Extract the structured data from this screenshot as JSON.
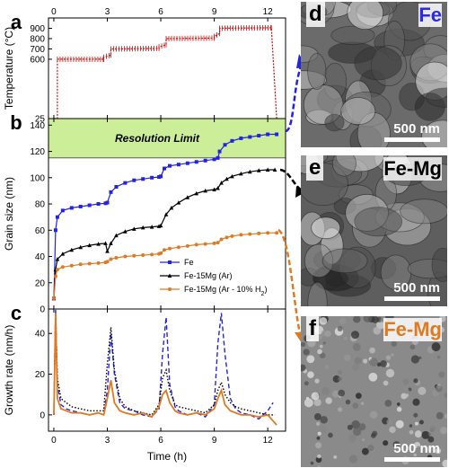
{
  "time_axis": {
    "label": "Time (h)",
    "ticks": [
      0,
      3,
      6,
      9,
      12
    ],
    "range": [
      -0.3,
      13
    ]
  },
  "panels": {
    "a": "a",
    "b": "b",
    "c": "c",
    "d": "d",
    "e": "e",
    "f": "f"
  },
  "resolution_limit_label": "Resolution Limit",
  "micrographs": [
    {
      "panel": "d",
      "material": "Fe",
      "material_color": "#2a2ae8",
      "scale_bar": "500 nm",
      "tone": "#6b6b6b"
    },
    {
      "panel": "e",
      "material": "Fe-Mg",
      "material_color": "#000000",
      "scale_bar": "500 nm",
      "tone": "#5e5e5e"
    },
    {
      "panel": "f",
      "material": "Fe-Mg",
      "material_color": "#e07a22",
      "scale_bar": "500 nm",
      "tone": "#8a8a8a"
    }
  ],
  "colors": {
    "fe": "#2323e6",
    "femg_ar": "#000000",
    "femg_h2": "#e07a22",
    "temp": "#cc1111",
    "band": "#ccee99"
  },
  "chart_data": [
    {
      "panel": "a",
      "type": "line",
      "ylabel": "Temperature (°C)",
      "yticks": [
        25,
        600,
        700,
        800,
        900
      ],
      "ylim": [
        25,
        1000
      ],
      "series": [
        {
          "name": "",
          "x": [
            0.0,
            0.2,
            0.2,
            2.8,
            2.8,
            3.2,
            3.2,
            5.9,
            5.9,
            6.3,
            6.3,
            9.0,
            9.0,
            9.3,
            9.3,
            12.2,
            12.2,
            12.5
          ],
          "y": [
            25,
            25,
            600,
            600,
            620,
            640,
            700,
            705,
            720,
            740,
            800,
            805,
            820,
            850,
            900,
            905,
            920,
            25
          ]
        }
      ]
    },
    {
      "panel": "b",
      "type": "line",
      "ylabel": "Grain size (nm)",
      "yticks": [
        0,
        20,
        40,
        60,
        80,
        100,
        120,
        140
      ],
      "ylim": [
        0,
        145
      ],
      "resolution_band": [
        115,
        145
      ],
      "legend": "center-right",
      "series": [
        {
          "name": "Fe",
          "x": [
            0.0,
            0.1,
            0.2,
            0.5,
            1.0,
            1.5,
            2.0,
            2.5,
            2.9,
            3.0,
            3.2,
            3.5,
            4.0,
            4.5,
            5.0,
            5.5,
            5.9,
            6.0,
            6.2,
            6.5,
            7.0,
            7.5,
            8.0,
            8.5,
            9.0,
            9.2,
            9.3,
            9.6,
            10.0,
            10.5,
            11.0,
            11.5,
            12.0,
            12.5
          ],
          "y": [
            8,
            60,
            70,
            75,
            77,
            78,
            79,
            80,
            80.5,
            81,
            89,
            93,
            96,
            98,
            99,
            100,
            100.5,
            101,
            107,
            109,
            110,
            111,
            112,
            113,
            114,
            115,
            120,
            125,
            128,
            130,
            131,
            132,
            133,
            133
          ]
        },
        {
          "name": "Fe-15Mg (Ar)",
          "x": [
            0.0,
            0.1,
            0.2,
            0.5,
            1.0,
            1.5,
            2.0,
            2.5,
            2.9,
            3.0,
            3.2,
            3.5,
            4.0,
            4.5,
            5.0,
            5.5,
            5.9,
            6.0,
            6.3,
            6.6,
            7.0,
            7.5,
            8.0,
            8.5,
            9.0,
            9.2,
            9.4,
            9.7,
            10.0,
            10.5,
            11.0,
            11.5,
            12.0,
            12.4
          ],
          "y": [
            8,
            30,
            38,
            42,
            45,
            47,
            48.5,
            49.5,
            50,
            44,
            50,
            56,
            59,
            61,
            62,
            62.5,
            63,
            63.5,
            72,
            77,
            81,
            85,
            88,
            90,
            91,
            92,
            96,
            99,
            101,
            103,
            104.5,
            105.5,
            106,
            106
          ]
        },
        {
          "name": "Fe-15Mg (Ar - 10% H2)",
          "x": [
            0.0,
            0.1,
            0.2,
            0.5,
            1.0,
            1.5,
            2.0,
            2.5,
            2.9,
            3.0,
            3.2,
            3.5,
            4.0,
            4.5,
            5.0,
            5.5,
            5.9,
            6.0,
            6.2,
            6.5,
            7.0,
            7.5,
            8.0,
            8.5,
            9.0,
            9.2,
            9.4,
            9.7,
            10.0,
            10.5,
            11.0,
            11.5,
            12.0,
            12.5
          ],
          "y": [
            8,
            25,
            30,
            32,
            33,
            34,
            34.5,
            35,
            35.5,
            36,
            38,
            39,
            40,
            40.5,
            41,
            41.5,
            42,
            42.5,
            45,
            46,
            47,
            48,
            49,
            49.5,
            50,
            50.5,
            53,
            54.5,
            55.5,
            56.5,
            57,
            57.5,
            58,
            58
          ]
        }
      ]
    },
    {
      "panel": "c",
      "type": "line",
      "ylabel": "Growth rate (nm/h)",
      "yticks": [
        0,
        20,
        40
      ],
      "ylim": [
        -8,
        52
      ],
      "series": [
        {
          "name": "Fe",
          "x": [
            0.0,
            0.1,
            0.2,
            0.4,
            0.7,
            1.0,
            1.5,
            2.0,
            2.5,
            2.8,
            3.0,
            3.2,
            3.4,
            3.7,
            4.0,
            4.5,
            5.0,
            5.5,
            5.9,
            6.1,
            6.3,
            6.5,
            6.8,
            7.0,
            7.5,
            8.0,
            8.5,
            9.0,
            9.2,
            9.4,
            9.6,
            9.9,
            10.2,
            10.5,
            11.0,
            11.5,
            12.0,
            12.3
          ],
          "y": [
            0,
            52,
            15,
            5,
            3,
            2,
            1,
            0,
            1,
            0,
            12,
            40,
            20,
            6,
            3,
            2,
            0,
            -1,
            3,
            30,
            48,
            15,
            4,
            2,
            0,
            1,
            -1,
            5,
            35,
            50,
            30,
            8,
            3,
            1,
            0,
            -2,
            2,
            6
          ]
        },
        {
          "name": "Fe-15Mg (Ar)",
          "x": [
            0.0,
            0.1,
            0.2,
            0.4,
            0.7,
            1.0,
            1.5,
            2.0,
            2.5,
            2.8,
            3.0,
            3.2,
            3.4,
            3.7,
            4.0,
            4.5,
            5.0,
            5.5,
            5.9,
            6.1,
            6.3,
            6.5,
            6.8,
            7.0,
            7.5,
            8.0,
            8.5,
            9.0,
            9.2,
            9.4,
            9.6,
            9.9,
            10.2,
            10.5,
            11.0,
            11.5,
            12.0,
            12.4
          ],
          "y": [
            0,
            50,
            18,
            8,
            6,
            4,
            3,
            2,
            2,
            2,
            25,
            43,
            22,
            8,
            4,
            2,
            1,
            0,
            5,
            18,
            22,
            12,
            5,
            4,
            3,
            2,
            1,
            5,
            12,
            16,
            10,
            6,
            4,
            3,
            2,
            1,
            0,
            0
          ]
        },
        {
          "name": "Fe-15Mg (Ar - 10% H2)",
          "x": [
            0.0,
            0.1,
            0.2,
            0.4,
            0.7,
            1.0,
            1.5,
            2.0,
            2.5,
            2.8,
            3.0,
            3.2,
            3.4,
            3.7,
            4.0,
            4.5,
            5.0,
            5.5,
            5.9,
            6.1,
            6.3,
            6.5,
            6.8,
            7.0,
            7.5,
            8.0,
            8.5,
            9.0,
            9.2,
            9.4,
            9.6,
            9.9,
            10.2,
            10.5,
            11.0,
            11.5,
            12.0,
            12.5
          ],
          "y": [
            0,
            50,
            8,
            3,
            2,
            1,
            1,
            0,
            1,
            0,
            8,
            17,
            6,
            2,
            1,
            0,
            1,
            -1,
            4,
            10,
            12,
            6,
            2,
            1,
            0,
            1,
            0,
            3,
            8,
            12,
            5,
            2,
            1,
            0,
            0,
            -1,
            0,
            -5
          ]
        }
      ]
    }
  ]
}
